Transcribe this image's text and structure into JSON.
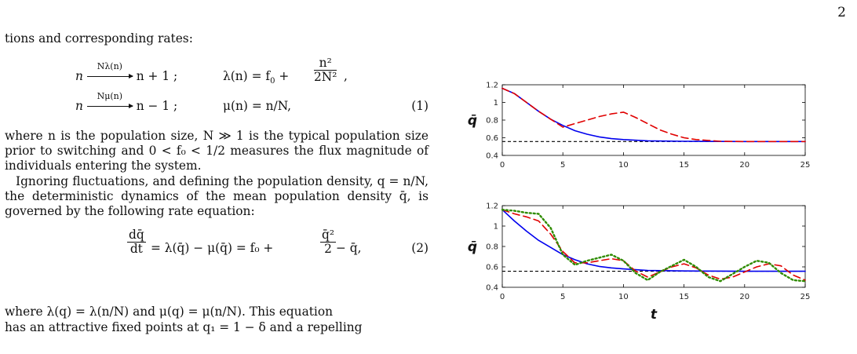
{
  "page_number": "2",
  "text": {
    "intro": "tions and corresponding rates:",
    "eq1_row1": {
      "lhs": "n",
      "arrow_label": "Nλ(n)",
      "rhs": "n + 1 ;",
      "rate": "λ(n) = f",
      "rate_sub": "0",
      "rate_plus": " + ",
      "frac_num": "n²",
      "frac_den": "2N²",
      "tail": ","
    },
    "eq1_row2": {
      "lhs": "n",
      "arrow_label": "Nμ(n)",
      "rhs": "n − 1 ;",
      "rate": "μ(n) = n/N,",
      "number": "(1)"
    },
    "para2": "where n is the population size, N ≫ 1 is the typical population size prior to switching and 0 < f₀ < 1/2 measures the flux magnitude of individuals entering the system.",
    "para3": "Ignoring fluctuations, and defining the population density, q = n/N, the deterministic dynamics of the mean population density q̄, is governed by the following rate equation:",
    "eq2": {
      "frac_num": "dq̄",
      "frac_den": "dt",
      "mid": " = λ(q̄) − μ(q̄) = f₀ + ",
      "frac2_num": "q̄²",
      "frac2_den": "2",
      "tail": " − q̄,",
      "number": "(2)"
    },
    "para4_line1": "where λ(q) = λ(n/N) and μ(q) = μ(n/N). This equation",
    "para4_line2": "has an attractive fixed points at q₁ = 1 − δ and a repelling"
  },
  "chart_data": [
    {
      "type": "line",
      "ylabel": "q̄",
      "xlabel": "",
      "xlim": [
        0,
        25
      ],
      "ylim": [
        0.4,
        1.2
      ],
      "xticks": [
        0,
        5,
        10,
        15,
        20,
        25
      ],
      "yticks": [
        0.4,
        0.6,
        0.8,
        1,
        1.2
      ],
      "ytick_labels": [
        "0.4",
        "0.6",
        "0.8",
        "1",
        "1.2"
      ],
      "reference_line": {
        "y": 0.557,
        "style": "dashed",
        "color": "#000000"
      },
      "series": [
        {
          "style": "solid",
          "color": "#0000ee",
          "x": [
            0,
            1,
            2,
            3,
            4,
            5,
            6,
            7,
            8,
            9,
            10,
            12,
            15,
            20,
            25
          ],
          "y": [
            1.16,
            1.1,
            1.0,
            0.9,
            0.81,
            0.74,
            0.68,
            0.64,
            0.61,
            0.59,
            0.58,
            0.565,
            0.56,
            0.557,
            0.557
          ]
        },
        {
          "style": "dashed",
          "color": "#e00000",
          "x": [
            0,
            1,
            2,
            3,
            4,
            5,
            6,
            7,
            8,
            9,
            10,
            11,
            12,
            13,
            14,
            15,
            16,
            17,
            18,
            20,
            25
          ],
          "y": [
            1.16,
            1.1,
            1.0,
            0.9,
            0.81,
            0.72,
            0.76,
            0.8,
            0.84,
            0.87,
            0.89,
            0.83,
            0.76,
            0.69,
            0.64,
            0.6,
            0.58,
            0.57,
            0.56,
            0.557,
            0.557
          ]
        }
      ]
    },
    {
      "type": "line",
      "ylabel": "q̄",
      "xlabel": "t",
      "xlim": [
        0,
        25
      ],
      "ylim": [
        0.4,
        1.2
      ],
      "xticks": [
        0,
        5,
        10,
        15,
        20,
        25
      ],
      "yticks": [
        0.4,
        0.6,
        0.8,
        1,
        1.2
      ],
      "ytick_labels": [
        "0.4",
        "0.6",
        "0.8",
        "1",
        "1.2"
      ],
      "reference_line": {
        "y": 0.557,
        "style": "dashed",
        "color": "#000000"
      },
      "series": [
        {
          "style": "solid",
          "color": "#0000ee",
          "x": [
            0,
            1,
            2,
            3,
            4,
            5,
            6,
            7,
            8,
            9,
            10,
            12,
            15,
            20,
            25
          ],
          "y": [
            1.16,
            1.05,
            0.95,
            0.86,
            0.79,
            0.72,
            0.67,
            0.63,
            0.605,
            0.59,
            0.58,
            0.565,
            0.56,
            0.557,
            0.557
          ]
        },
        {
          "style": "dashed",
          "color": "#e00000",
          "x": [
            0,
            1,
            2,
            3,
            4,
            5,
            6,
            7,
            8,
            9,
            10,
            11,
            12,
            13,
            14,
            15,
            16,
            17,
            18,
            19,
            20,
            21,
            22,
            23,
            24,
            25
          ],
          "y": [
            1.16,
            1.12,
            1.09,
            1.05,
            0.92,
            0.75,
            0.64,
            0.64,
            0.66,
            0.68,
            0.66,
            0.56,
            0.5,
            0.55,
            0.6,
            0.63,
            0.59,
            0.52,
            0.48,
            0.5,
            0.55,
            0.6,
            0.63,
            0.61,
            0.52,
            0.47
          ]
        },
        {
          "style": "dotted",
          "color": "#2e8b00",
          "x": [
            0,
            1,
            2,
            3,
            4,
            5,
            6,
            7,
            8,
            9,
            10,
            11,
            12,
            13,
            14,
            15,
            16,
            17,
            18,
            19,
            20,
            21,
            22,
            23,
            24,
            25
          ],
          "y": [
            1.16,
            1.15,
            1.13,
            1.12,
            0.98,
            0.72,
            0.62,
            0.66,
            0.69,
            0.72,
            0.66,
            0.54,
            0.47,
            0.55,
            0.61,
            0.67,
            0.6,
            0.5,
            0.46,
            0.53,
            0.6,
            0.66,
            0.64,
            0.54,
            0.47,
            0.46
          ]
        }
      ]
    }
  ]
}
